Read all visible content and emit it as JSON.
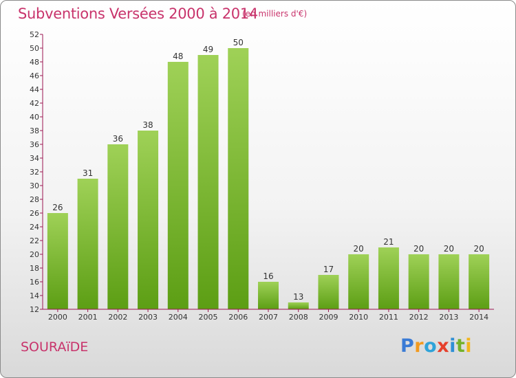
{
  "header": {
    "title": "Subventions Versées 2000 à 2014",
    "unit": "(en milliers d'€)"
  },
  "footer": {
    "commune": "SOURAïDE",
    "logo": [
      "P",
      "r",
      "o",
      "x",
      "i",
      "t",
      "i"
    ]
  },
  "colors": {
    "title": "#c8336b",
    "bar_top": "#9fd157",
    "bar_bottom": "#5c9e14",
    "axis": "#9b1450",
    "grid": "#c0c0c0"
  },
  "chart_data": {
    "type": "bar",
    "title": "Subventions Versées 2000 à 2014",
    "xlabel": "",
    "ylabel": "",
    "categories": [
      "2000",
      "2001",
      "2002",
      "2003",
      "2004",
      "2005",
      "2006",
      "2007",
      "2008",
      "2009",
      "2010",
      "2011",
      "2012",
      "2013",
      "2014"
    ],
    "values": [
      26,
      31,
      36,
      38,
      48,
      49,
      50,
      16,
      13,
      17,
      20,
      21,
      20,
      20,
      20
    ],
    "ylim": [
      12,
      52
    ],
    "yticks": [
      12,
      14,
      16,
      18,
      20,
      22,
      24,
      26,
      28,
      30,
      32,
      34,
      36,
      38,
      40,
      42,
      44,
      46,
      48,
      50,
      52
    ],
    "grid": false,
    "data_labels": true
  }
}
